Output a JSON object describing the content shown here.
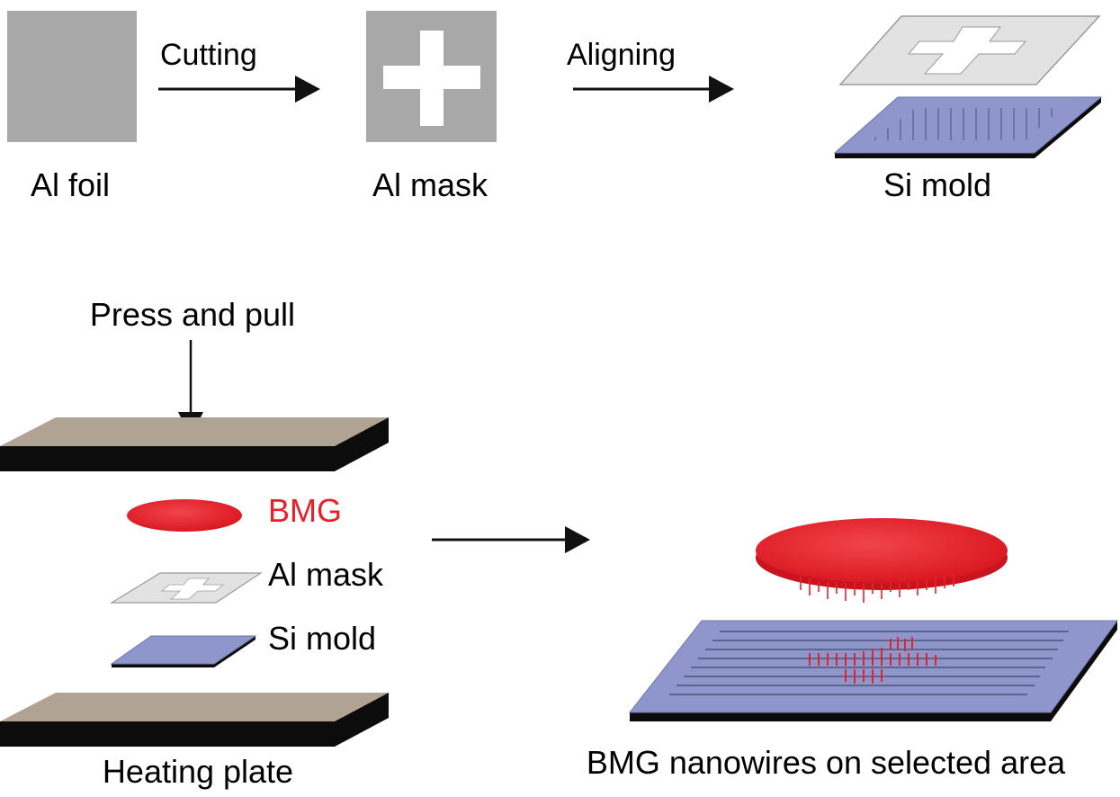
{
  "labels": {
    "al_foil": "Al foil",
    "cutting": "Cutting",
    "al_mask_top": "Al mask",
    "aligning": "Aligning",
    "si_mold_top": "Si mold",
    "press_and_pull": "Press and pull",
    "bmg": "BMG",
    "al_mask_stack": "Al mask",
    "si_mold_stack": "Si mold",
    "heating_plate": "Heating plate",
    "result": "BMG nanowires on selected area"
  },
  "colors": {
    "foil_gray": "#a8a8a8",
    "mask_light": "#e2e2e2",
    "si_blue": "#8e96cc",
    "plate_top": "#b0a394",
    "plate_side": "#0c0c0c",
    "bmg_red": "#e8202a",
    "label_red": "#e8202a"
  }
}
